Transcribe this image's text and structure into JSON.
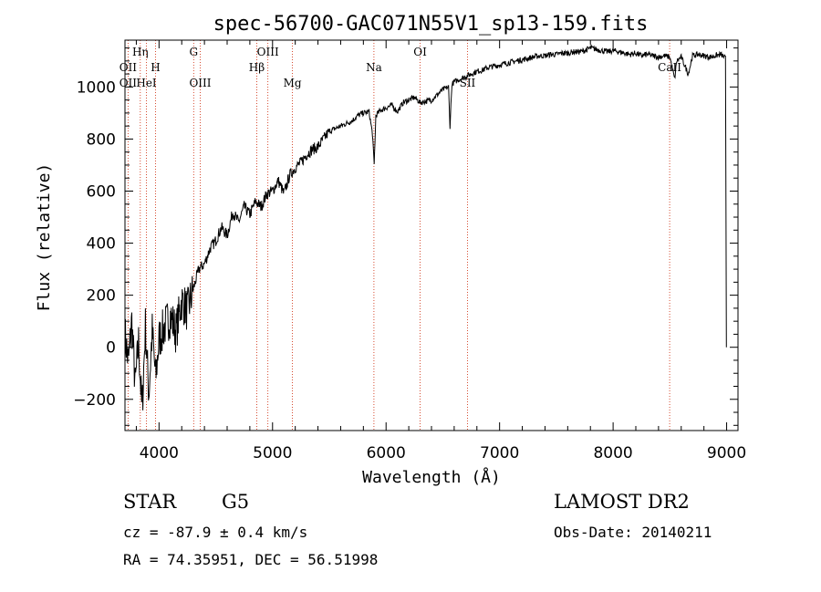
{
  "chart_data": {
    "type": "line",
    "title": "spec-56700-GAC071N55V1_sp13-159.fits",
    "xlabel": "Wavelength (Å)",
    "ylabel": "Flux (relative)",
    "xlim": [
      3700,
      9100
    ],
    "ylim": [
      -320,
      1180
    ],
    "xticks": [
      4000,
      5000,
      6000,
      7000,
      8000,
      9000
    ],
    "yticks": [
      -200,
      0,
      200,
      400,
      600,
      800,
      1000
    ],
    "grid": false,
    "series": [
      {
        "name": "spectrum",
        "x": [
          3700,
          3730,
          3760,
          3790,
          3820,
          3850,
          3880,
          3910,
          3940,
          3970,
          4000,
          4050,
          4100,
          4150,
          4200,
          4250,
          4300,
          4350,
          4400,
          4450,
          4500,
          4550,
          4600,
          4650,
          4700,
          4750,
          4800,
          4850,
          4900,
          4950,
          5000,
          5050,
          5100,
          5150,
          5200,
          5250,
          5300,
          5350,
          5400,
          5450,
          5500,
          5550,
          5600,
          5650,
          5700,
          5750,
          5800,
          5850,
          5880,
          5895,
          5910,
          5950,
          6000,
          6050,
          6100,
          6150,
          6200,
          6250,
          6300,
          6350,
          6400,
          6450,
          6500,
          6550,
          6563,
          6580,
          6600,
          6650,
          6700,
          6750,
          6800,
          6850,
          6900,
          6950,
          7000,
          7050,
          7100,
          7150,
          7200,
          7250,
          7300,
          7350,
          7400,
          7450,
          7500,
          7550,
          7600,
          7650,
          7700,
          7750,
          7800,
          7850,
          7900,
          7950,
          8000,
          8050,
          8100,
          8150,
          8200,
          8250,
          8300,
          8350,
          8400,
          8450,
          8500,
          8542,
          8560,
          8600,
          8662,
          8700,
          8750,
          8800,
          8850,
          8900,
          8950,
          8990,
          8998
        ],
        "values": [
          50,
          -60,
          100,
          -150,
          20,
          -250,
          80,
          -180,
          60,
          -120,
          30,
          80,
          120,
          60,
          180,
          140,
          220,
          300,
          320,
          380,
          410,
          460,
          430,
          520,
          480,
          540,
          510,
          560,
          540,
          590,
          600,
          640,
          590,
          660,
          690,
          710,
          740,
          760,
          770,
          800,
          830,
          840,
          850,
          860,
          870,
          890,
          900,
          905,
          820,
          700,
          890,
          910,
          920,
          930,
          905,
          940,
          950,
          960,
          940,
          945,
          950,
          970,
          990,
          1000,
          850,
          1010,
          1020,
          1030,
          1040,
          1050,
          1060,
          1065,
          1075,
          1080,
          1085,
          1090,
          1095,
          1100,
          1105,
          1110,
          1115,
          1120,
          1120,
          1125,
          1125,
          1130,
          1130,
          1135,
          1135,
          1140,
          1150,
          1145,
          1140,
          1135,
          1140,
          1135,
          1130,
          1125,
          1130,
          1120,
          1125,
          1120,
          1115,
          1120,
          1115,
          1030,
          1100,
          1115,
          1050,
          1120,
          1125,
          1120,
          1115,
          1120,
          1125,
          1110,
          0
        ]
      }
    ],
    "spectral_lines": [
      {
        "label": "OII",
        "x": 3727,
        "row": 2
      },
      {
        "label": "OII",
        "x": 3727,
        "row": 3
      },
      {
        "label": "Hη",
        "x": 3835,
        "row": 1
      },
      {
        "label": "HeI",
        "x": 3889,
        "row": 3
      },
      {
        "label": "H",
        "x": 3969,
        "row": 2
      },
      {
        "label": "G",
        "x": 4305,
        "row": 1
      },
      {
        "label": "OIII",
        "x": 4363,
        "row": 3
      },
      {
        "label": "Hβ",
        "x": 4861,
        "row": 2
      },
      {
        "label": "OIII",
        "x": 4959,
        "row": 1
      },
      {
        "label": "Mg",
        "x": 5175,
        "row": 3
      },
      {
        "label": "Na",
        "x": 5893,
        "row": 2
      },
      {
        "label": "OI",
        "x": 6300,
        "row": 1
      },
      {
        "label": "SII",
        "x": 6717,
        "row": 3
      },
      {
        "label": "CaII",
        "x": 8498,
        "row": 2
      }
    ]
  },
  "info": {
    "object_class": "STAR",
    "subclass": "G5",
    "survey": "LAMOST DR2",
    "redshift": "cz = -87.9 ± 0.4 km/s",
    "obs_date": "Obs-Date: 20140211",
    "coords": "RA =  74.35951, DEC =  56.51998"
  },
  "colors": {
    "axis": "#000000",
    "spectrum": "#000000",
    "line_markers": "#cc2200"
  }
}
